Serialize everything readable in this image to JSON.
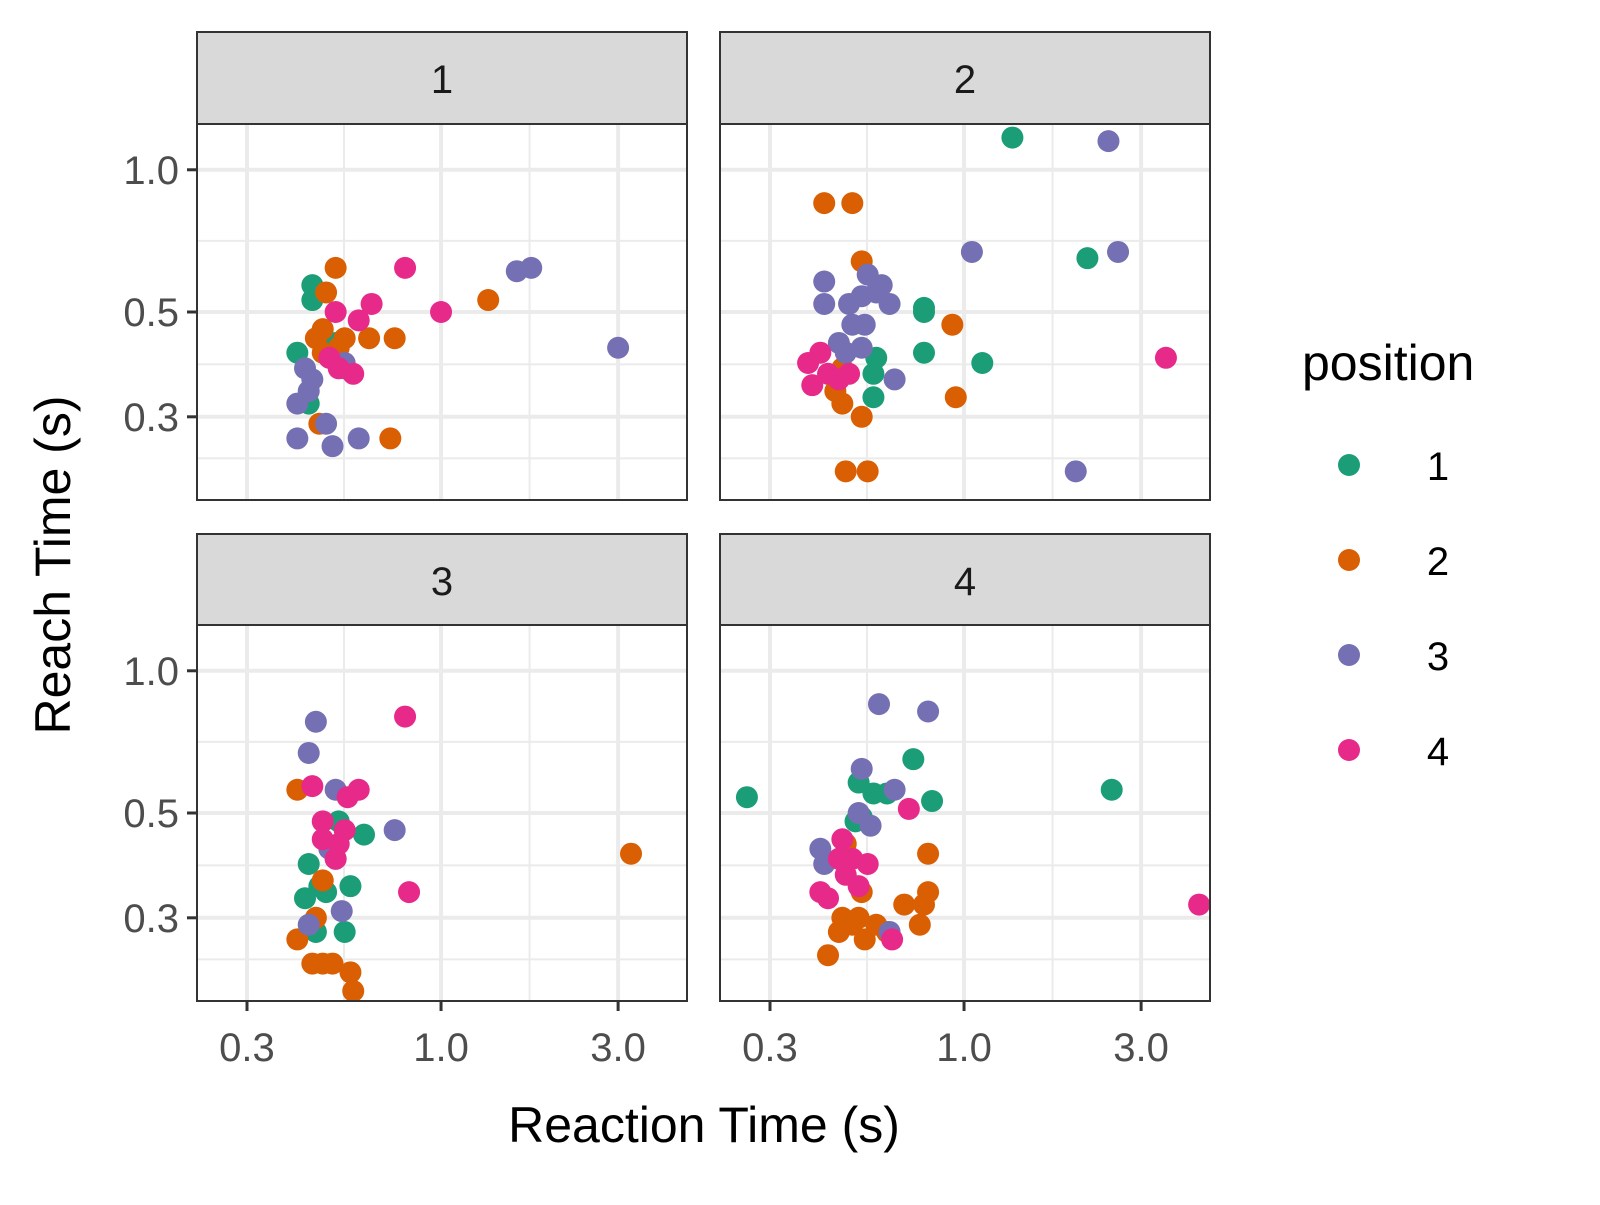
{
  "chart_data": {
    "type": "scatter",
    "facet_variable": "position",
    "xlabel": "Reaction Time (s)",
    "ylabel": "Reach Time (s)",
    "x_scale": "log10",
    "y_scale": "log10",
    "xlim": [
      0.22,
      4.6
    ],
    "ylim": [
      0.2,
      1.25
    ],
    "x_ticks": [
      0.3,
      1.0,
      3.0
    ],
    "x_tick_labels": [
      "0.3",
      "1.0",
      "3.0"
    ],
    "y_ticks": [
      0.3,
      0.5,
      1.0
    ],
    "y_tick_labels": [
      "0.3",
      "0.5",
      "1.0"
    ],
    "grid": true,
    "legend": {
      "title": "position",
      "placement": "right",
      "entries": [
        {
          "label": "1",
          "color": "#1B9E77"
        },
        {
          "label": "2",
          "color": "#D95F02"
        },
        {
          "label": "3",
          "color": "#7570B3"
        },
        {
          "label": "4",
          "color": "#E7298A"
        }
      ]
    },
    "panels": [
      {
        "label": "1",
        "series": [
          {
            "name": "1",
            "color": "#1B9E77",
            "points": [
              [
                0.41,
                0.41
              ],
              [
                0.45,
                0.57
              ],
              [
                0.45,
                0.53
              ],
              [
                0.44,
                0.32
              ],
              [
                0.55,
                0.38
              ],
              [
                0.52,
                0.43
              ]
            ]
          },
          {
            "name": "2",
            "color": "#D95F02",
            "points": [
              [
                0.52,
                0.62
              ],
              [
                0.49,
                0.55
              ],
              [
                0.48,
                0.46
              ],
              [
                0.46,
                0.44
              ],
              [
                0.55,
                0.44
              ],
              [
                0.53,
                0.42
              ],
              [
                0.48,
                0.41
              ],
              [
                0.64,
                0.44
              ],
              [
                0.75,
                0.44
              ],
              [
                1.34,
                0.53
              ],
              [
                0.73,
                0.27
              ],
              [
                0.47,
                0.29
              ]
            ]
          },
          {
            "name": "3",
            "color": "#7570B3",
            "points": [
              [
                0.41,
                0.32
              ],
              [
                0.44,
                0.34
              ],
              [
                0.45,
                0.36
              ],
              [
                0.43,
                0.38
              ],
              [
                0.41,
                0.27
              ],
              [
                0.49,
                0.29
              ],
              [
                0.51,
                0.26
              ],
              [
                0.6,
                0.27
              ],
              [
                0.55,
                0.39
              ],
              [
                1.6,
                0.61
              ],
              [
                1.75,
                0.62
              ],
              [
                3.0,
                0.42
              ]
            ]
          },
          {
            "name": "4",
            "color": "#E7298A",
            "points": [
              [
                0.52,
                0.5
              ],
              [
                0.6,
                0.48
              ],
              [
                0.65,
                0.52
              ],
              [
                0.8,
                0.62
              ],
              [
                1.0,
                0.5
              ],
              [
                0.58,
                0.37
              ],
              [
                0.5,
                0.4
              ],
              [
                0.53,
                0.38
              ]
            ]
          }
        ]
      },
      {
        "label": "2",
        "series": [
          {
            "name": "1",
            "color": "#1B9E77",
            "points": [
              [
                1.35,
                1.17
              ],
              [
                2.15,
                0.65
              ],
              [
                0.78,
                0.51
              ],
              [
                0.78,
                0.5
              ],
              [
                0.78,
                0.41
              ],
              [
                1.12,
                0.39
              ],
              [
                0.58,
                0.4
              ],
              [
                0.57,
                0.37
              ],
              [
                0.57,
                0.33
              ]
            ]
          },
          {
            "name": "2",
            "color": "#D95F02",
            "points": [
              [
                0.42,
                0.85
              ],
              [
                0.5,
                0.85
              ],
              [
                0.53,
                0.64
              ],
              [
                0.93,
                0.47
              ],
              [
                0.47,
                0.38
              ],
              [
                0.95,
                0.33
              ],
              [
                0.45,
                0.34
              ],
              [
                0.47,
                0.32
              ],
              [
                0.53,
                0.3
              ],
              [
                0.48,
                0.23
              ],
              [
                0.55,
                0.23
              ]
            ]
          },
          {
            "name": "3",
            "color": "#7570B3",
            "points": [
              [
                1.05,
                0.67
              ],
              [
                2.45,
                1.15
              ],
              [
                2.6,
                0.67
              ],
              [
                0.42,
                0.58
              ],
              [
                0.55,
                0.6
              ],
              [
                0.6,
                0.57
              ],
              [
                0.42,
                0.52
              ],
              [
                0.49,
                0.52
              ],
              [
                0.53,
                0.54
              ],
              [
                0.5,
                0.47
              ],
              [
                0.54,
                0.47
              ],
              [
                0.46,
                0.43
              ],
              [
                0.48,
                0.41
              ],
              [
                0.53,
                0.42
              ],
              [
                0.63,
                0.52
              ],
              [
                0.65,
                0.36
              ],
              [
                2.0,
                0.23
              ],
              [
                0.58,
                0.55
              ]
            ]
          },
          {
            "name": "4",
            "color": "#E7298A",
            "points": [
              [
                0.38,
                0.39
              ],
              [
                0.41,
                0.41
              ],
              [
                0.39,
                0.35
              ],
              [
                0.43,
                0.37
              ],
              [
                0.46,
                0.36
              ],
              [
                0.49,
                0.37
              ],
              [
                3.5,
                0.4
              ]
            ]
          }
        ]
      },
      {
        "label": "3",
        "series": [
          {
            "name": "1",
            "color": "#1B9E77",
            "points": [
              [
                0.53,
                0.48
              ],
              [
                0.62,
                0.45
              ],
              [
                0.44,
                0.39
              ],
              [
                0.47,
                0.35
              ],
              [
                0.43,
                0.33
              ],
              [
                0.49,
                0.34
              ],
              [
                0.57,
                0.35
              ],
              [
                0.55,
                0.28
              ],
              [
                0.46,
                0.28
              ]
            ]
          },
          {
            "name": "2",
            "color": "#D95F02",
            "points": [
              [
                0.41,
                0.56
              ],
              [
                3.25,
                0.41
              ],
              [
                0.48,
                0.36
              ],
              [
                0.46,
                0.3
              ],
              [
                0.41,
                0.27
              ],
              [
                0.45,
                0.24
              ],
              [
                0.48,
                0.24
              ],
              [
                0.51,
                0.24
              ],
              [
                0.57,
                0.23
              ],
              [
                0.58,
                0.21
              ]
            ]
          },
          {
            "name": "3",
            "color": "#7570B3",
            "points": [
              [
                0.46,
                0.78
              ],
              [
                0.44,
                0.67
              ],
              [
                0.52,
                0.56
              ],
              [
                0.75,
                0.46
              ],
              [
                0.5,
                0.42
              ],
              [
                0.52,
                0.4
              ],
              [
                0.54,
                0.31
              ],
              [
                0.44,
                0.29
              ]
            ]
          },
          {
            "name": "4",
            "color": "#E7298A",
            "points": [
              [
                0.8,
                0.8
              ],
              [
                0.45,
                0.57
              ],
              [
                0.56,
                0.54
              ],
              [
                0.6,
                0.56
              ],
              [
                0.48,
                0.48
              ],
              [
                0.55,
                0.46
              ],
              [
                0.53,
                0.43
              ],
              [
                0.48,
                0.44
              ],
              [
                0.52,
                0.4
              ],
              [
                0.82,
                0.34
              ]
            ]
          }
        ]
      },
      {
        "label": "4",
        "series": [
          {
            "name": "1",
            "color": "#1B9E77",
            "points": [
              [
                0.26,
                0.54
              ],
              [
                0.52,
                0.58
              ],
              [
                0.57,
                0.55
              ],
              [
                0.62,
                0.55
              ],
              [
                0.73,
                0.65
              ],
              [
                0.82,
                0.53
              ],
              [
                2.5,
                0.56
              ],
              [
                0.53,
                0.49
              ],
              [
                0.51,
                0.48
              ]
            ]
          },
          {
            "name": "2",
            "color": "#D95F02",
            "points": [
              [
                0.48,
                0.43
              ],
              [
                0.8,
                0.41
              ],
              [
                0.53,
                0.34
              ],
              [
                0.69,
                0.32
              ],
              [
                0.78,
                0.32
              ],
              [
                0.8,
                0.34
              ],
              [
                0.47,
                0.3
              ],
              [
                0.52,
                0.3
              ],
              [
                0.5,
                0.29
              ],
              [
                0.58,
                0.29
              ],
              [
                0.76,
                0.29
              ],
              [
                0.62,
                0.28
              ],
              [
                0.46,
                0.28
              ],
              [
                0.54,
                0.27
              ],
              [
                0.43,
                0.25
              ]
            ]
          },
          {
            "name": "3",
            "color": "#7570B3",
            "points": [
              [
                0.59,
                0.85
              ],
              [
                0.8,
                0.82
              ],
              [
                0.53,
                0.62
              ],
              [
                0.65,
                0.56
              ],
              [
                0.56,
                0.47
              ],
              [
                0.52,
                0.5
              ],
              [
                0.41,
                0.42
              ],
              [
                0.42,
                0.39
              ],
              [
                0.63,
                0.28
              ]
            ]
          },
          {
            "name": "4",
            "color": "#E7298A",
            "points": [
              [
                0.71,
                0.51
              ],
              [
                0.47,
                0.44
              ],
              [
                0.46,
                0.4
              ],
              [
                0.5,
                0.4
              ],
              [
                0.55,
                0.39
              ],
              [
                0.48,
                0.37
              ],
              [
                0.52,
                0.35
              ],
              [
                0.41,
                0.34
              ],
              [
                0.43,
                0.33
              ],
              [
                0.64,
                0.27
              ],
              [
                4.3,
                0.32
              ]
            ]
          }
        ]
      }
    ]
  }
}
